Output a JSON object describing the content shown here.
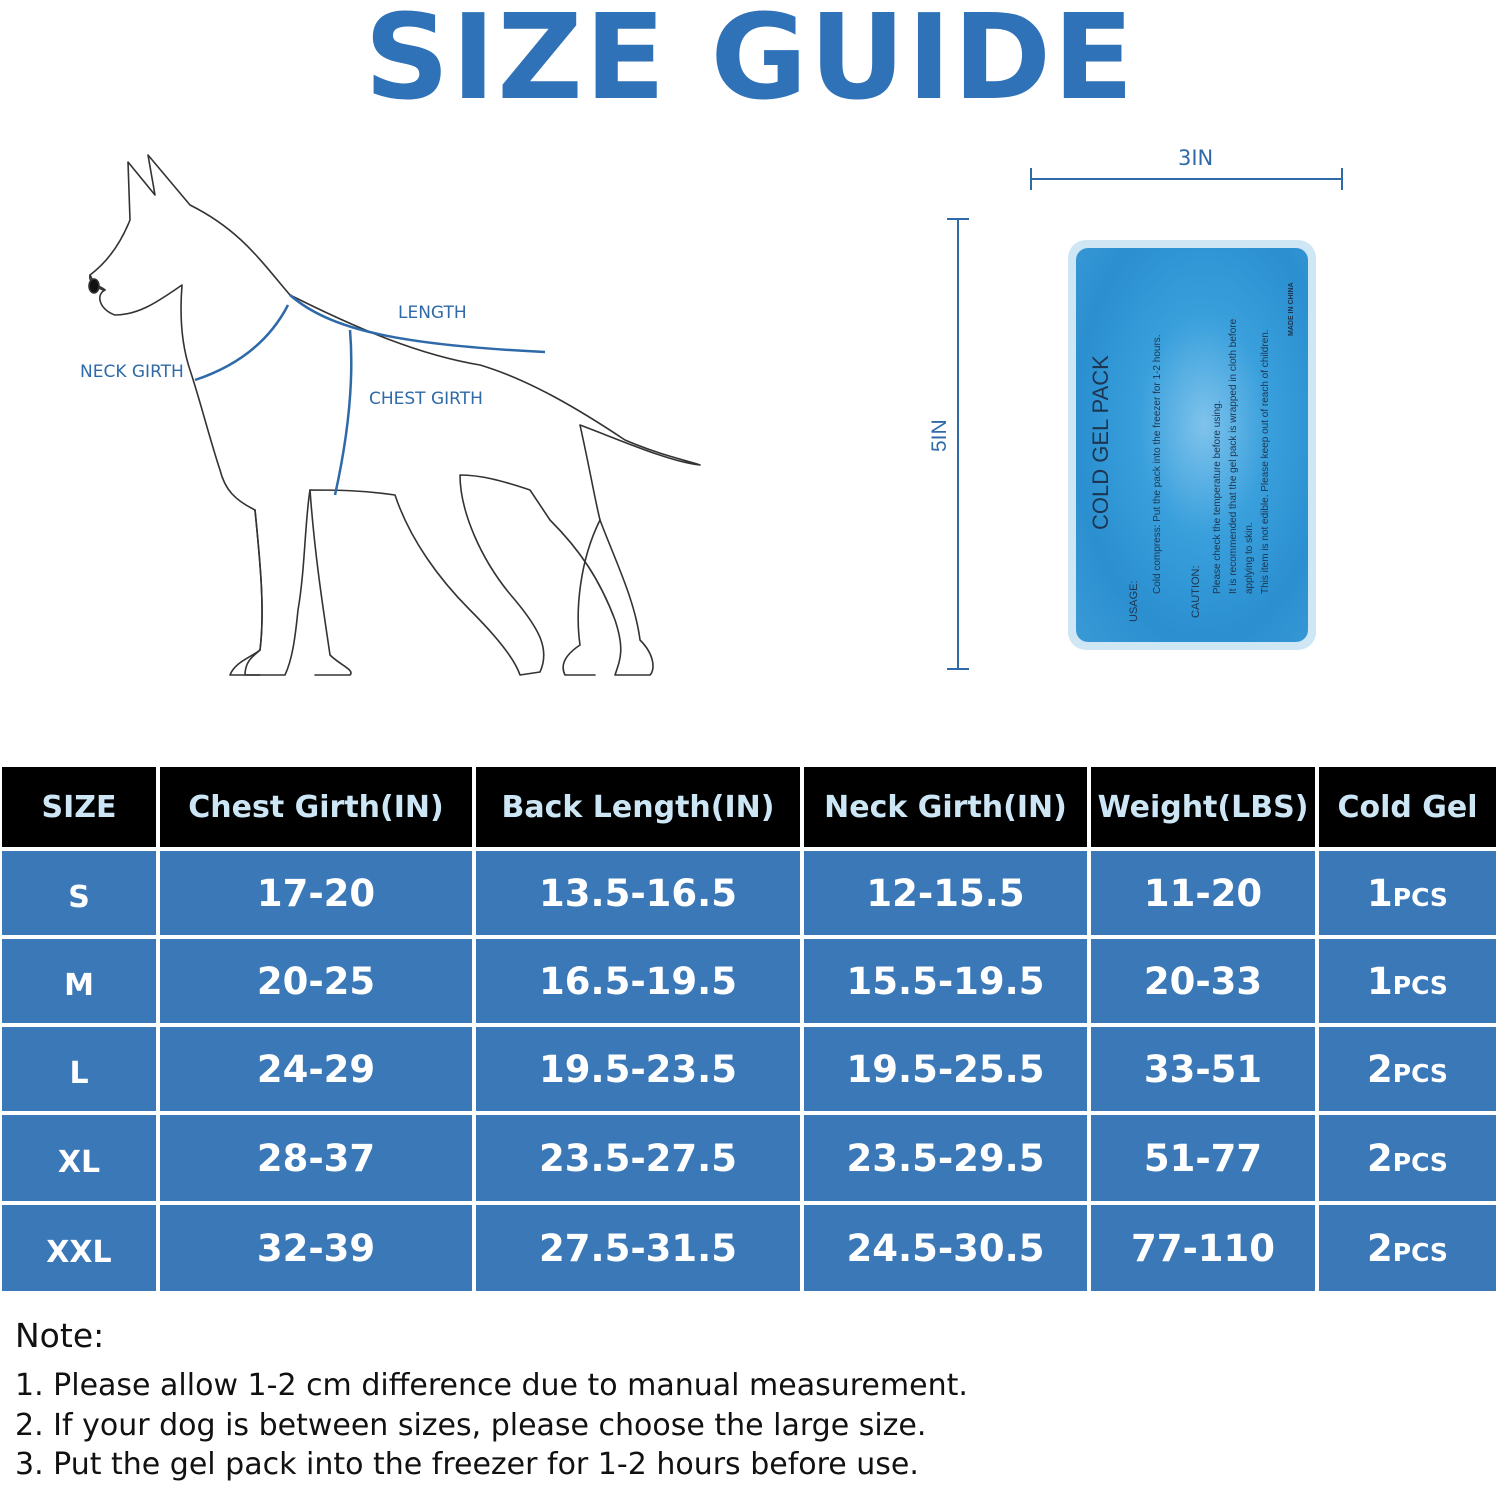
{
  "title": "SIZE GUIDE",
  "diagram": {
    "length": "LENGTH",
    "neck_girth": "NECK GIRTH",
    "chest_girth": "CHEST GIRTH"
  },
  "gel_pack": {
    "width_label": "3IN",
    "height_label": "5IN",
    "name": "COLD GEL PACK",
    "usage_title": "USAGE:",
    "usage_text": "Cold compress: Put the pack into the freezer for 1-2 hours.",
    "caution_title": "CAUTION:",
    "caution_lines": [
      "Please check the temperature before using.",
      "It is recommended that the gel pack is wrapped in cloth before",
      "applying to skin.",
      "This item is not edible. Please keep out of reach of children."
    ],
    "origin": "MADE IN CHINA",
    "color": "#3aa0dc"
  },
  "table": {
    "headers": [
      "SIZE",
      "Chest Girth(IN)",
      "Back Length(IN)",
      "Neck Girth(IN)",
      "Weight(LBS)",
      "Cold Gel"
    ],
    "rows": [
      {
        "size": "S",
        "chest": "17-20",
        "back": "13.5-16.5",
        "neck": "12-15.5",
        "weight": "11-20",
        "gel_n": "1",
        "gel_unit": "PCS"
      },
      {
        "size": "M",
        "chest": "20-25",
        "back": "16.5-19.5",
        "neck": "15.5-19.5",
        "weight": "20-33",
        "gel_n": "1",
        "gel_unit": "PCS"
      },
      {
        "size": "L",
        "chest": "24-29",
        "back": "19.5-23.5",
        "neck": "19.5-25.5",
        "weight": "33-51",
        "gel_n": "2",
        "gel_unit": "PCS"
      },
      {
        "size": "XL",
        "chest": "28-37",
        "back": "23.5-27.5",
        "neck": "23.5-29.5",
        "weight": "51-77",
        "gel_n": "2",
        "gel_unit": "PCS"
      },
      {
        "size": "XXL",
        "chest": "32-39",
        "back": "27.5-31.5",
        "neck": "24.5-30.5",
        "weight": "77-110",
        "gel_n": "2",
        "gel_unit": "PCS"
      }
    ],
    "header_bg": "#000000",
    "header_text": "#cce6f5",
    "row_bg": "#3a78b8"
  },
  "notes": {
    "title": "Note:",
    "items": [
      "1. Please allow 1-2 cm difference due to manual measurement.",
      "2. If your dog is between sizes, please choose the large size.",
      "3. Put the gel pack into the freezer for 1-2 hours before use."
    ]
  },
  "accent": "#2f72b8"
}
